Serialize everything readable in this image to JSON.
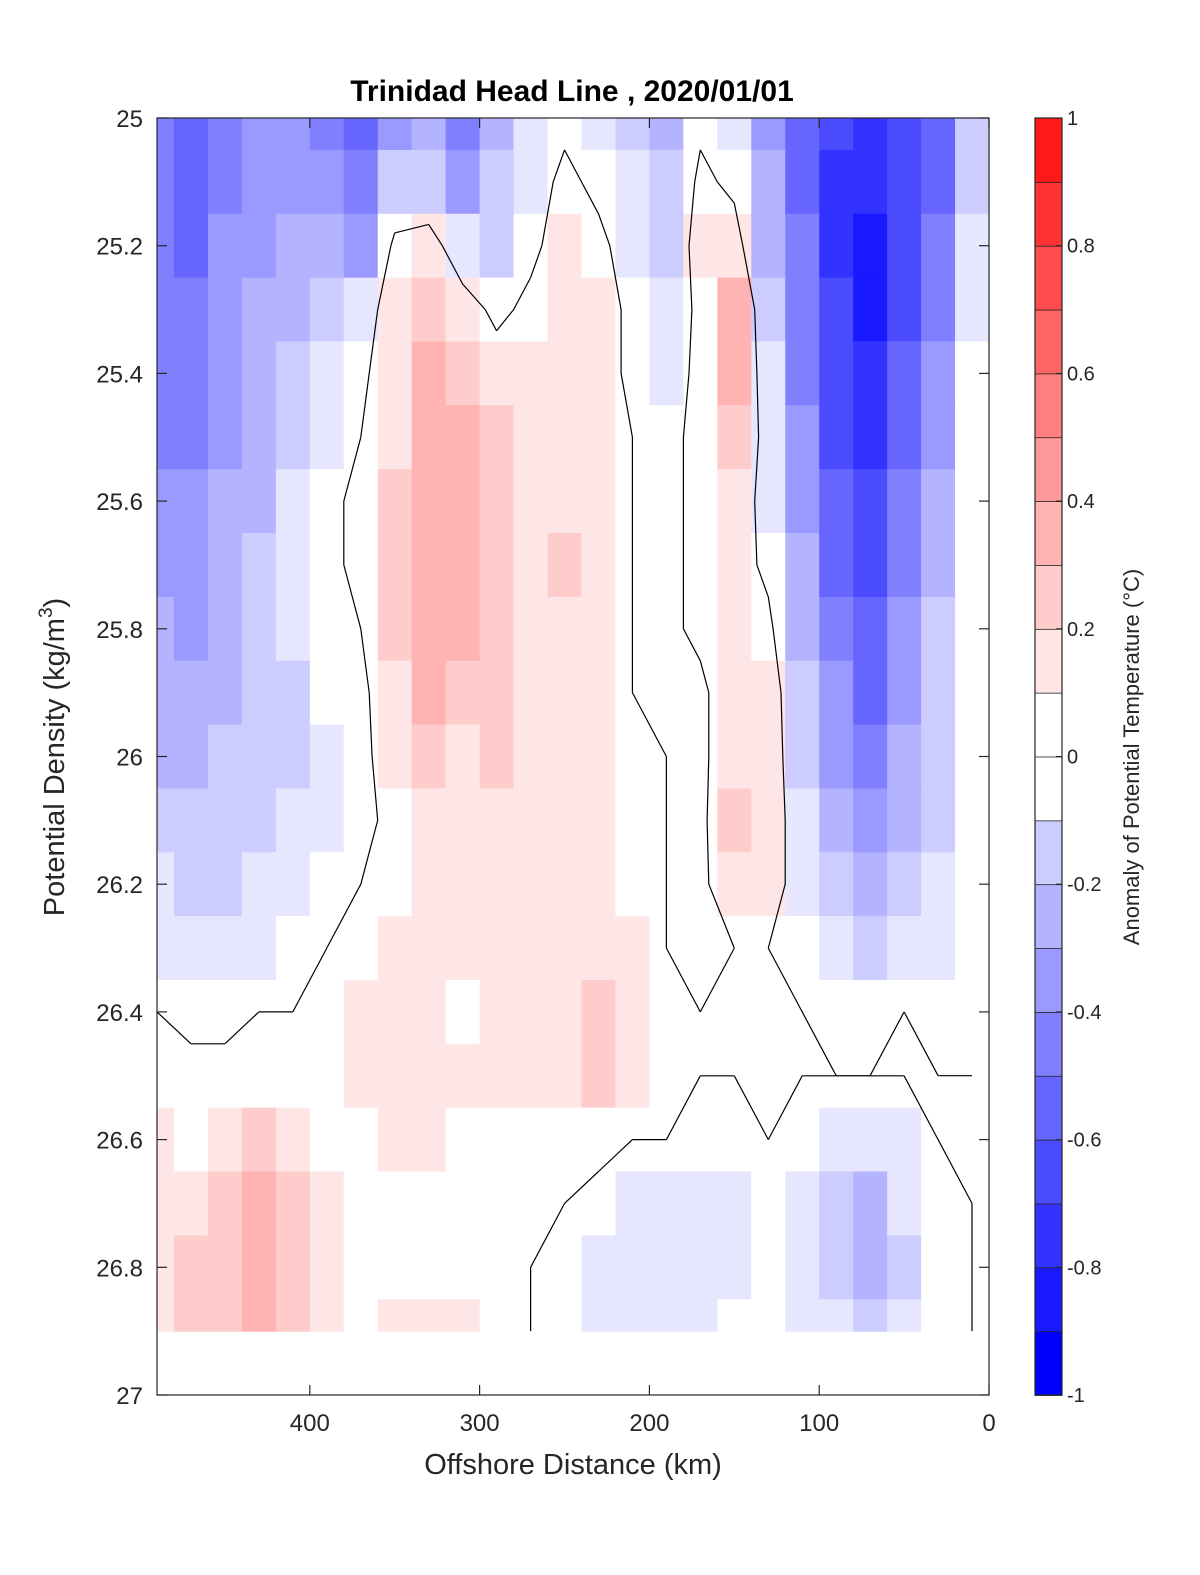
{
  "chart_data": {
    "type": "heatmap",
    "title": "Trinidad Head Line , 2020/01/01",
    "xlabel": "Offshore Distance (km)",
    "ylabel": "Potential Density (kg/m",
    "ylabel_sup": "3",
    "ylabel_tail": ")",
    "xlim": [
      490,
      0
    ],
    "ylim": [
      25,
      27
    ],
    "y_reversed": true,
    "x_ticks": [
      "400",
      "300",
      "200",
      "100",
      "0"
    ],
    "x_tick_values": [
      400,
      300,
      200,
      100,
      0
    ],
    "y_ticks": [
      "25",
      "25.2",
      "25.4",
      "25.6",
      "25.8",
      "26",
      "26.2",
      "26.4",
      "26.6",
      "26.8",
      "27"
    ],
    "y_tick_values": [
      25,
      25.2,
      25.4,
      25.6,
      25.8,
      26,
      26.2,
      26.4,
      26.6,
      26.8,
      27
    ],
    "colorbar": {
      "label": "Anomaly of Potential Temperature (°C)",
      "range": [
        -1,
        1
      ],
      "step": 0.1,
      "ticks": [
        "1",
        "0.8",
        "0.6",
        "0.4",
        "0.2",
        "0",
        "-0.2",
        "-0.4",
        "-0.6",
        "-0.8",
        "-1"
      ],
      "tick_values": [
        1,
        0.8,
        0.6,
        0.4,
        0.2,
        0,
        -0.2,
        -0.4,
        -0.6,
        -0.8,
        -1
      ],
      "colors": [
        "#0000ff",
        "#1a1aff",
        "#3333ff",
        "#4d4dff",
        "#6666ff",
        "#8080ff",
        "#9999ff",
        "#b3b3ff",
        "#ccccff",
        "#e6e6ff",
        "#ffffff",
        "#ffffff",
        "#ffe6e6",
        "#ffcccc",
        "#ffb3b3",
        "#ff9999",
        "#ff8080",
        "#ff6666",
        "#ff4d4d",
        "#ff3333",
        "#ff1a1a",
        "#ff0000"
      ]
    },
    "x": [
      490,
      470,
      450,
      430,
      410,
      390,
      370,
      350,
      330,
      310,
      290,
      270,
      250,
      230,
      210,
      190,
      170,
      150,
      130,
      110,
      90,
      70,
      50,
      30,
      10
    ],
    "y": [
      25,
      25.1,
      25.2,
      25.3,
      25.4,
      25.5,
      25.6,
      25.7,
      25.8,
      25.9,
      26,
      26.1,
      26.2,
      26.3,
      26.4,
      26.5,
      26.6,
      26.7,
      26.8,
      26.9
    ],
    "values": [
      [
        -0.5,
        -0.6,
        -0.55,
        -0.45,
        -0.45,
        -0.5,
        -0.6,
        -0.45,
        -0.3,
        -0.5,
        -0.3,
        -0.15,
        -0.05,
        -0.1,
        -0.2,
        -0.3,
        -0.05,
        -0.1,
        -0.4,
        -0.6,
        -0.75,
        -0.8,
        -0.7,
        -0.6,
        -0.2
      ],
      [
        -0.55,
        -0.65,
        -0.5,
        -0.45,
        -0.4,
        -0.45,
        -0.55,
        -0.2,
        -0.2,
        -0.4,
        -0.25,
        -0.1,
        0.05,
        -0.05,
        -0.15,
        -0.25,
        0.05,
        -0.05,
        -0.35,
        -0.6,
        -0.8,
        -0.85,
        -0.75,
        -0.6,
        -0.2
      ],
      [
        -0.55,
        -0.6,
        -0.45,
        -0.4,
        -0.35,
        -0.3,
        -0.4,
        0.05,
        0.1,
        -0.15,
        -0.2,
        -0.05,
        0.1,
        0.05,
        -0.1,
        -0.2,
        0.1,
        0.1,
        -0.3,
        -0.55,
        -0.8,
        -0.9,
        -0.75,
        -0.55,
        -0.15
      ],
      [
        -0.5,
        -0.55,
        -0.45,
        -0.35,
        -0.3,
        -0.25,
        -0.15,
        0.15,
        0.25,
        0.1,
        -0.05,
        0.05,
        0.15,
        0.1,
        -0.05,
        -0.15,
        0.05,
        0.3,
        -0.2,
        -0.55,
        -0.75,
        -0.9,
        -0.7,
        -0.5,
        -0.1
      ],
      [
        -0.5,
        -0.5,
        -0.45,
        -0.35,
        -0.25,
        -0.15,
        -0.05,
        0.15,
        0.3,
        0.25,
        0.1,
        0.15,
        0.15,
        0.1,
        -0.05,
        -0.1,
        0.05,
        0.3,
        -0.15,
        -0.5,
        -0.75,
        -0.85,
        -0.65,
        -0.45,
        -0.05
      ],
      [
        -0.5,
        -0.5,
        -0.4,
        -0.3,
        -0.2,
        -0.1,
        0.0,
        0.15,
        0.35,
        0.3,
        0.2,
        0.15,
        0.15,
        0.15,
        0.0,
        -0.05,
        0.05,
        0.25,
        -0.1,
        -0.45,
        -0.7,
        -0.8,
        -0.6,
        -0.4,
        -0.05
      ],
      [
        -0.45,
        -0.45,
        -0.35,
        -0.3,
        -0.15,
        -0.05,
        0.05,
        0.2,
        0.35,
        0.3,
        0.25,
        0.15,
        0.15,
        0.15,
        0.0,
        -0.05,
        0.05,
        0.15,
        -0.1,
        -0.4,
        -0.65,
        -0.75,
        -0.55,
        -0.35,
        -0.05
      ],
      [
        -0.4,
        -0.45,
        -0.35,
        -0.25,
        -0.15,
        -0.05,
        0.05,
        0.2,
        0.35,
        0.3,
        0.25,
        0.15,
        0.2,
        0.15,
        0.0,
        -0.05,
        0.05,
        0.1,
        -0.05,
        -0.35,
        -0.6,
        -0.7,
        -0.5,
        -0.3,
        -0.05
      ],
      [
        -0.35,
        -0.4,
        -0.3,
        -0.25,
        -0.15,
        -0.05,
        0.0,
        0.2,
        0.3,
        0.3,
        0.25,
        0.15,
        0.15,
        0.15,
        0.0,
        -0.05,
        0.05,
        0.15,
        0.05,
        -0.3,
        -0.5,
        -0.65,
        -0.45,
        -0.25,
        -0.05
      ],
      [
        -0.35,
        -0.35,
        -0.3,
        -0.25,
        -0.2,
        -0.05,
        -0.05,
        0.15,
        0.3,
        0.25,
        0.2,
        0.15,
        0.15,
        0.1,
        0.0,
        -0.05,
        -0.05,
        0.15,
        0.15,
        -0.25,
        -0.45,
        -0.6,
        -0.4,
        -0.25,
        -0.05
      ],
      [
        -0.3,
        -0.3,
        -0.25,
        -0.2,
        -0.2,
        -0.1,
        -0.05,
        0.1,
        0.2,
        0.15,
        0.2,
        0.15,
        0.1,
        0.1,
        0.05,
        0.0,
        -0.05,
        0.15,
        0.15,
        -0.2,
        -0.4,
        -0.5,
        -0.35,
        -0.2,
        -0.05
      ],
      [
        -0.25,
        -0.25,
        -0.25,
        -0.2,
        -0.15,
        -0.1,
        -0.05,
        0.05,
        0.15,
        0.15,
        0.15,
        0.15,
        0.1,
        0.1,
        0.05,
        0.0,
        -0.05,
        0.2,
        0.15,
        -0.15,
        -0.3,
        -0.45,
        -0.3,
        -0.2,
        -0.05
      ],
      [
        -0.15,
        -0.2,
        -0.2,
        -0.15,
        -0.1,
        -0.05,
        0.0,
        0.05,
        0.1,
        0.15,
        0.15,
        0.15,
        0.15,
        0.1,
        0.05,
        0.0,
        -0.05,
        0.15,
        0.1,
        -0.1,
        -0.25,
        -0.35,
        -0.2,
        -0.15,
        -0.05
      ],
      [
        -0.1,
        -0.15,
        -0.1,
        -0.1,
        -0.05,
        0.0,
        0.05,
        0.15,
        0.1,
        0.1,
        0.1,
        0.15,
        0.15,
        0.15,
        0.1,
        0.0,
        -0.05,
        0.0,
        0.0,
        -0.05,
        -0.15,
        -0.2,
        -0.15,
        -0.1,
        -0.05
      ],
      [
        0.0,
        -0.05,
        -0.05,
        0.0,
        0.0,
        0.05,
        0.1,
        0.15,
        0.1,
        0.05,
        0.1,
        0.15,
        0.15,
        0.25,
        0.15,
        0.05,
        0.0,
        0.0,
        0.0,
        0.0,
        -0.05,
        -0.05,
        0.0,
        -0.05,
        -0.05
      ],
      [
        0.05,
        0.05,
        0.05,
        0.05,
        0.05,
        0.05,
        0.1,
        0.15,
        0.15,
        0.1,
        0.1,
        0.1,
        0.15,
        0.2,
        0.15,
        0.05,
        0.0,
        0.0,
        0.0,
        0.0,
        0.0,
        0.0,
        0.0,
        0.0,
        0.0
      ],
      [
        0.1,
        0.05,
        0.15,
        0.2,
        0.15,
        0.05,
        0.05,
        0.1,
        0.1,
        0.05,
        0.05,
        0.05,
        0.05,
        0.05,
        0.0,
        0.0,
        -0.05,
        -0.05,
        0.0,
        -0.05,
        -0.15,
        -0.15,
        -0.1,
        0.0,
        0.0
      ],
      [
        0.1,
        0.15,
        0.25,
        0.3,
        0.25,
        0.1,
        0.05,
        0.0,
        0.05,
        0.05,
        0.0,
        0.0,
        0.0,
        -0.05,
        -0.1,
        -0.15,
        -0.15,
        -0.1,
        -0.05,
        -0.1,
        -0.2,
        -0.3,
        -0.15,
        -0.05,
        0.0
      ],
      [
        0.15,
        0.2,
        0.25,
        0.35,
        0.25,
        0.15,
        0.05,
        0.0,
        0.0,
        0.05,
        0.05,
        0.0,
        -0.05,
        -0.1,
        -0.1,
        -0.15,
        -0.15,
        -0.1,
        -0.05,
        -0.1,
        -0.2,
        -0.3,
        -0.2,
        -0.05,
        0.0
      ],
      [
        0.15,
        0.2,
        0.25,
        0.3,
        0.2,
        0.1,
        0.0,
        0.1,
        0.15,
        0.1,
        0.0,
        0.0,
        -0.05,
        -0.1,
        -0.1,
        -0.1,
        -0.1,
        -0.05,
        -0.05,
        -0.1,
        -0.15,
        -0.2,
        -0.15,
        -0.05,
        0.0
      ]
    ],
    "no_data_below_density": 26.9,
    "zero_contour_color": "#000000",
    "grid": false,
    "legend": "none"
  }
}
